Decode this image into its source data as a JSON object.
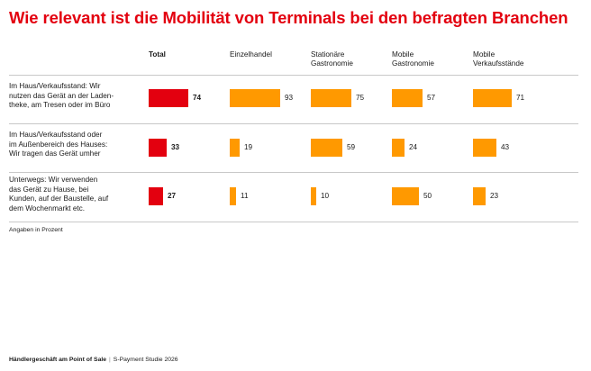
{
  "title": "Wie relevant ist die Mobilität von Terminals bei den befragten Branchen",
  "note": "Angaben in Prozent",
  "footer": {
    "left": "Händlergeschäft am Point of Sale",
    "separator": "|",
    "right": "S-Payment Studie 2026"
  },
  "colors": {
    "title": "#e3000f",
    "total": "#e3000f",
    "branch": "#ff9900",
    "rule": "#c8c8c8"
  },
  "chart_data": {
    "type": "bar",
    "orientation": "horizontal",
    "title": "Wie relevant ist die Mobilität von Terminals bei den befragten Branchen",
    "unit": "Angaben in Prozent",
    "xlim": [
      0,
      100
    ],
    "grid": false,
    "categories": [
      "Im Haus/Verkaufsstand: Wir nutzen das Gerät an der Laden-theke, am Tresen oder im Büro",
      "Im Haus/Verkaufsstand oder im Außenbereich des Hauses: Wir tragen das Gerät umher",
      "Unterwegs: Wir verwenden das Gerät zu Hause, bei Kunden, auf der Baustelle, auf dem Wochenmarkt etc."
    ],
    "category_lines": [
      [
        "Im Haus/Verkaufsstand: Wir",
        "nutzen das Gerät an der Laden-",
        "theke, am Tresen oder im Büro"
      ],
      [
        "Im Haus/Verkaufsstand oder",
        "im Außenbereich des Hauses:",
        "Wir tragen das Gerät umher"
      ],
      [
        "Unterwegs: Wir verwenden",
        "das Gerät zu Hause, bei",
        "Kunden, auf der Baustelle, auf",
        "dem Wochenmarkt etc."
      ]
    ],
    "series": [
      {
        "name": "Total",
        "header_lines": [
          "Total"
        ],
        "values": [
          74,
          33,
          27
        ],
        "emphasis": true
      },
      {
        "name": "Einzelhandel",
        "header_lines": [
          "Einzelhandel"
        ],
        "values": [
          93,
          19,
          11
        ]
      },
      {
        "name": "Stationäre Gastronomie",
        "header_lines": [
          "Stationäre",
          "Gastronomie"
        ],
        "values": [
          75,
          59,
          10
        ]
      },
      {
        "name": "Mobile Gastronomie",
        "header_lines": [
          "Mobile",
          "Gastronomie"
        ],
        "values": [
          57,
          24,
          50
        ]
      },
      {
        "name": "Mobile Verkaufsstände",
        "header_lines": [
          "Mobile",
          "Verkaufsstände"
        ],
        "values": [
          71,
          43,
          23
        ]
      }
    ]
  }
}
